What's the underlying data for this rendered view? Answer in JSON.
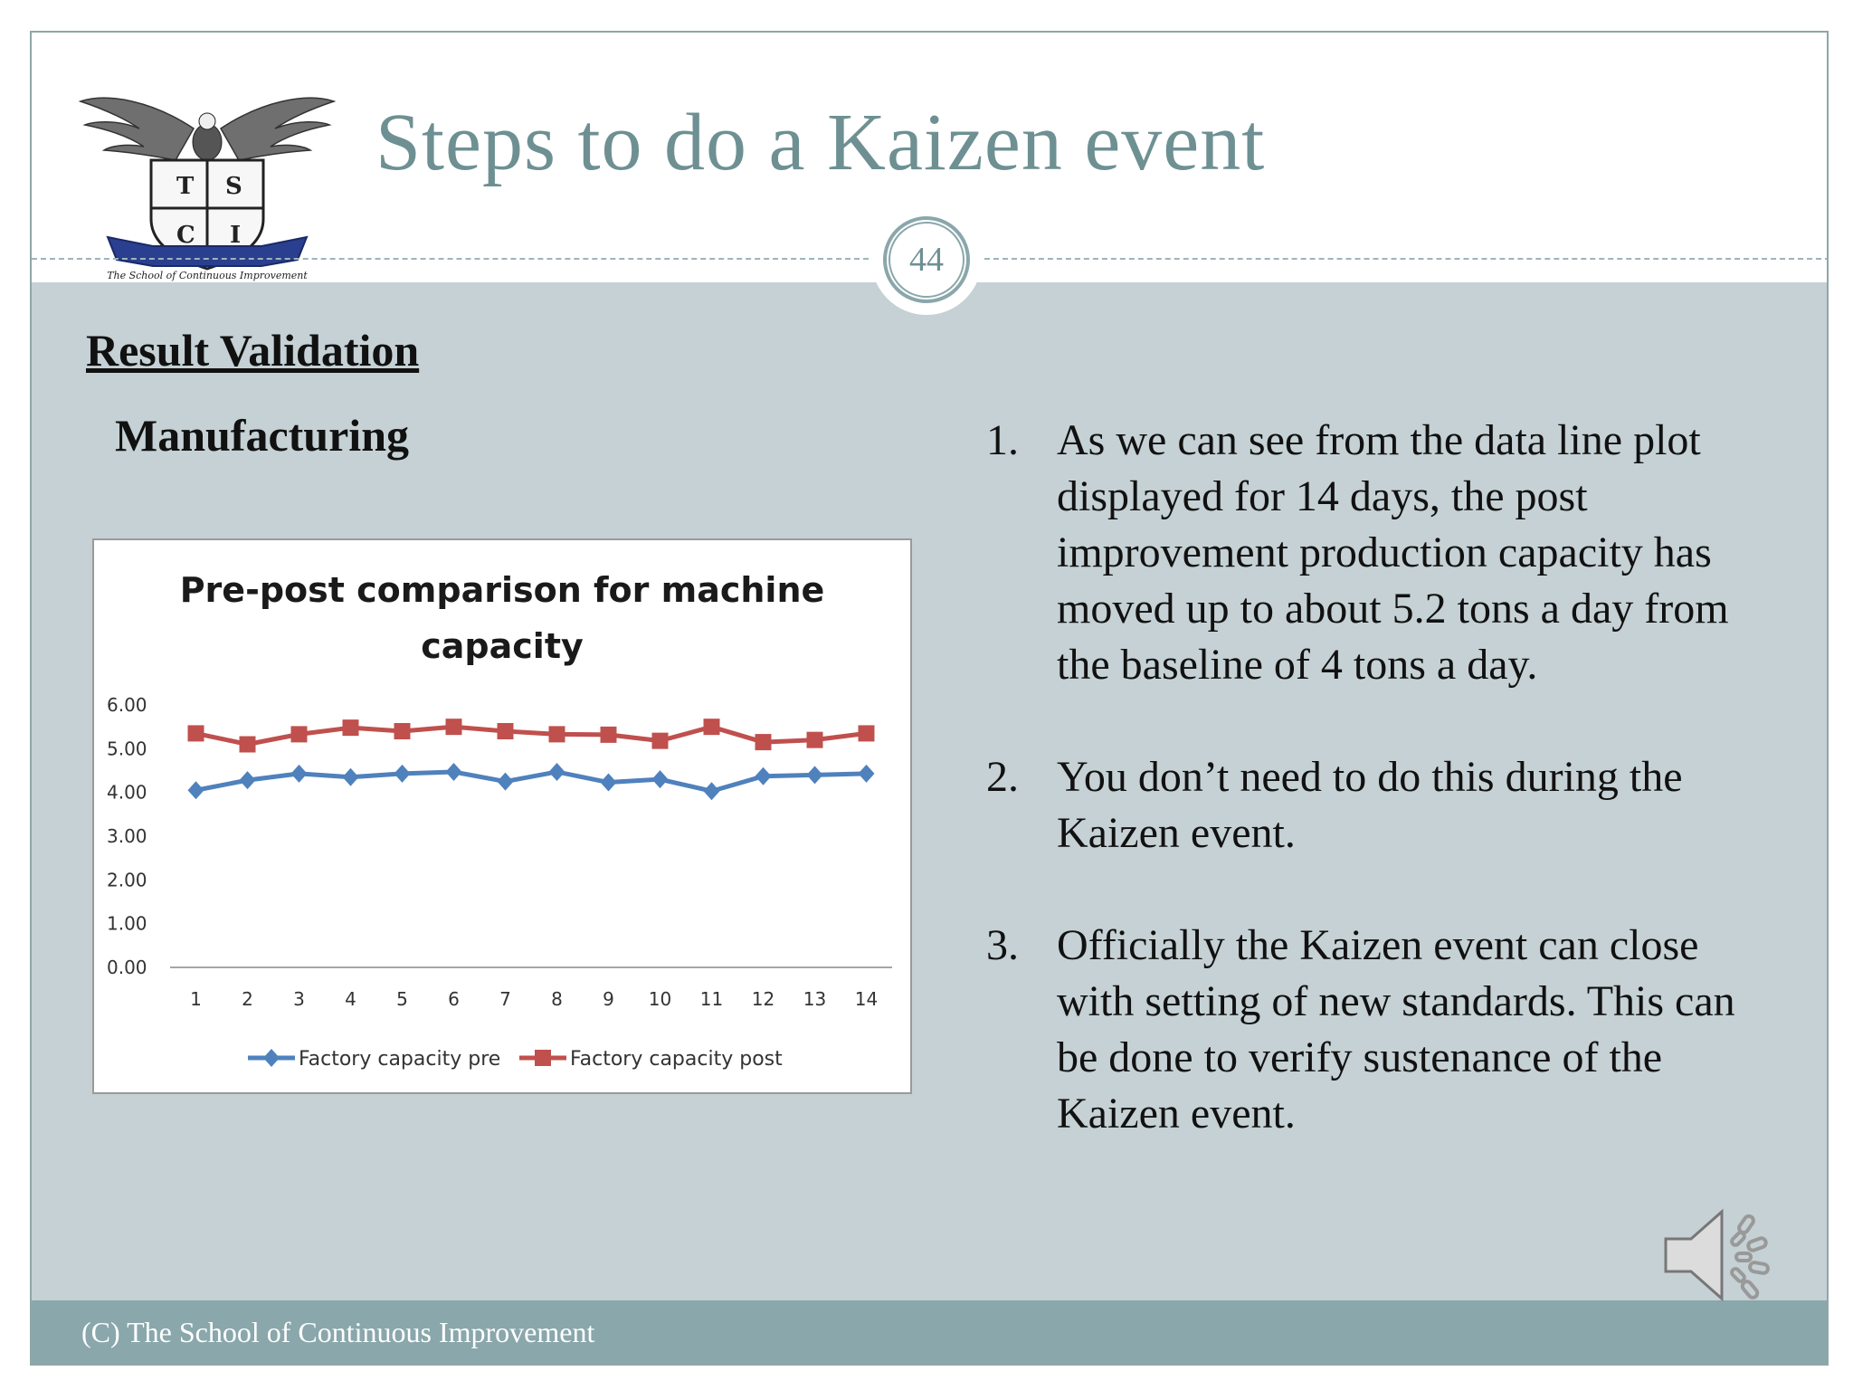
{
  "slide": {
    "title": "Steps to do a Kaizen event",
    "page_number": "44",
    "logo": {
      "letters": [
        "T",
        "S",
        "C",
        "I"
      ],
      "ribbon_text": "The School of Continuous Improvement"
    },
    "section_heading": "Result Validation",
    "sub_heading": "Manufacturing",
    "footer": "(C) The School of Continuous Improvement",
    "points": [
      {
        "num": "1.",
        "text": "As we can see from the data line plot displayed for 14 days, the post improvement production capacity has moved up to about 5.2 tons a day from the baseline of 4 tons a day."
      },
      {
        "num": "2.",
        "text": "You don’t need to do this during the Kaizen event."
      },
      {
        "num": "3.",
        "text": "Officially the Kaizen event can close with setting of new standards. This can be done to verify sustenance of the Kaizen event."
      }
    ],
    "colors": {
      "title": "#6e9093",
      "content_bg": "#c5d1d4",
      "footer_bg": "#8aa7ab"
    },
    "icons": [
      "speaker-icon"
    ]
  },
  "chart_data": {
    "type": "line",
    "title_lines": [
      "Pre-post comparison for machine",
      "capacity"
    ],
    "categories": [
      "1",
      "2",
      "3",
      "4",
      "5",
      "6",
      "7",
      "8",
      "9",
      "10",
      "11",
      "12",
      "13",
      "14"
    ],
    "y_ticks": [
      "0.00",
      "1.00",
      "2.00",
      "3.00",
      "4.00",
      "5.00",
      "6.00"
    ],
    "ylim": [
      0,
      6
    ],
    "grid": false,
    "legend_position": "bottom",
    "series": [
      {
        "name": "Factory capacity pre",
        "color": "#4f81bd",
        "marker": "diamond",
        "values": [
          4.05,
          4.28,
          4.43,
          4.35,
          4.43,
          4.47,
          4.25,
          4.47,
          4.23,
          4.3,
          4.03,
          4.37,
          4.4,
          4.43
        ]
      },
      {
        "name": "Factory capacity post",
        "color": "#c0504d",
        "marker": "square",
        "values": [
          5.35,
          5.1,
          5.33,
          5.48,
          5.4,
          5.5,
          5.4,
          5.33,
          5.32,
          5.18,
          5.5,
          5.15,
          5.2,
          5.35
        ]
      }
    ]
  }
}
